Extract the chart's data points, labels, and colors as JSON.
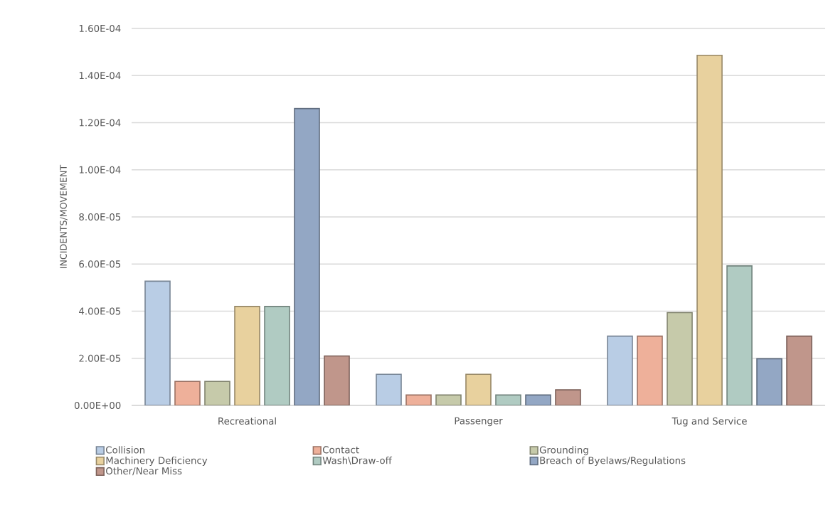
{
  "chart_data": {
    "type": "bar",
    "ylabel": "INCIDENTS/MOVEMENT",
    "categories": [
      "Recreational",
      "Passenger",
      "Tug and Service"
    ],
    "series": [
      {
        "name": "Collision",
        "color": "#b9cde5",
        "values": [
          5.27e-05,
          1.32e-05,
          2.94e-05
        ]
      },
      {
        "name": "Contact",
        "color": "#eeb09a",
        "values": [
          1.02e-05,
          4.4e-06,
          2.94e-05
        ]
      },
      {
        "name": "Grounding",
        "color": "#c6caaa",
        "values": [
          1.02e-05,
          4.4e-06,
          3.94e-05
        ]
      },
      {
        "name": "Machinery Deficiency",
        "color": "#e8d19e",
        "values": [
          4.2e-05,
          1.32e-05,
          0.0001486
        ]
      },
      {
        "name": "Wash\\Draw-off",
        "color": "#b0cbc2",
        "values": [
          4.2e-05,
          4.4e-06,
          5.92e-05
        ]
      },
      {
        "name": "Breach of Byelaws/Regulations",
        "color": "#93a7c4",
        "values": [
          0.000126,
          4.4e-06,
          1.98e-05
        ]
      },
      {
        "name": "Other/Near Miss",
        "color": "#c0968b",
        "values": [
          2.1e-05,
          6.6e-06,
          2.94e-05
        ]
      }
    ],
    "ylim": [
      0,
      0.00016
    ],
    "yticks": [
      {
        "value": 0,
        "label": "0.00E+00"
      },
      {
        "value": 2e-05,
        "label": "2.00E-05"
      },
      {
        "value": 4e-05,
        "label": "4.00E-05"
      },
      {
        "value": 6e-05,
        "label": "6.00E-05"
      },
      {
        "value": 8e-05,
        "label": "8.00E-05"
      },
      {
        "value": 0.0001,
        "label": "1.00E-04"
      },
      {
        "value": 0.00012,
        "label": "1.20E-04"
      },
      {
        "value": 0.00014,
        "label": "1.40E-04"
      },
      {
        "value": 0.00016,
        "label": "1.60E-04"
      }
    ],
    "grid": "y",
    "legend": "bottom"
  }
}
